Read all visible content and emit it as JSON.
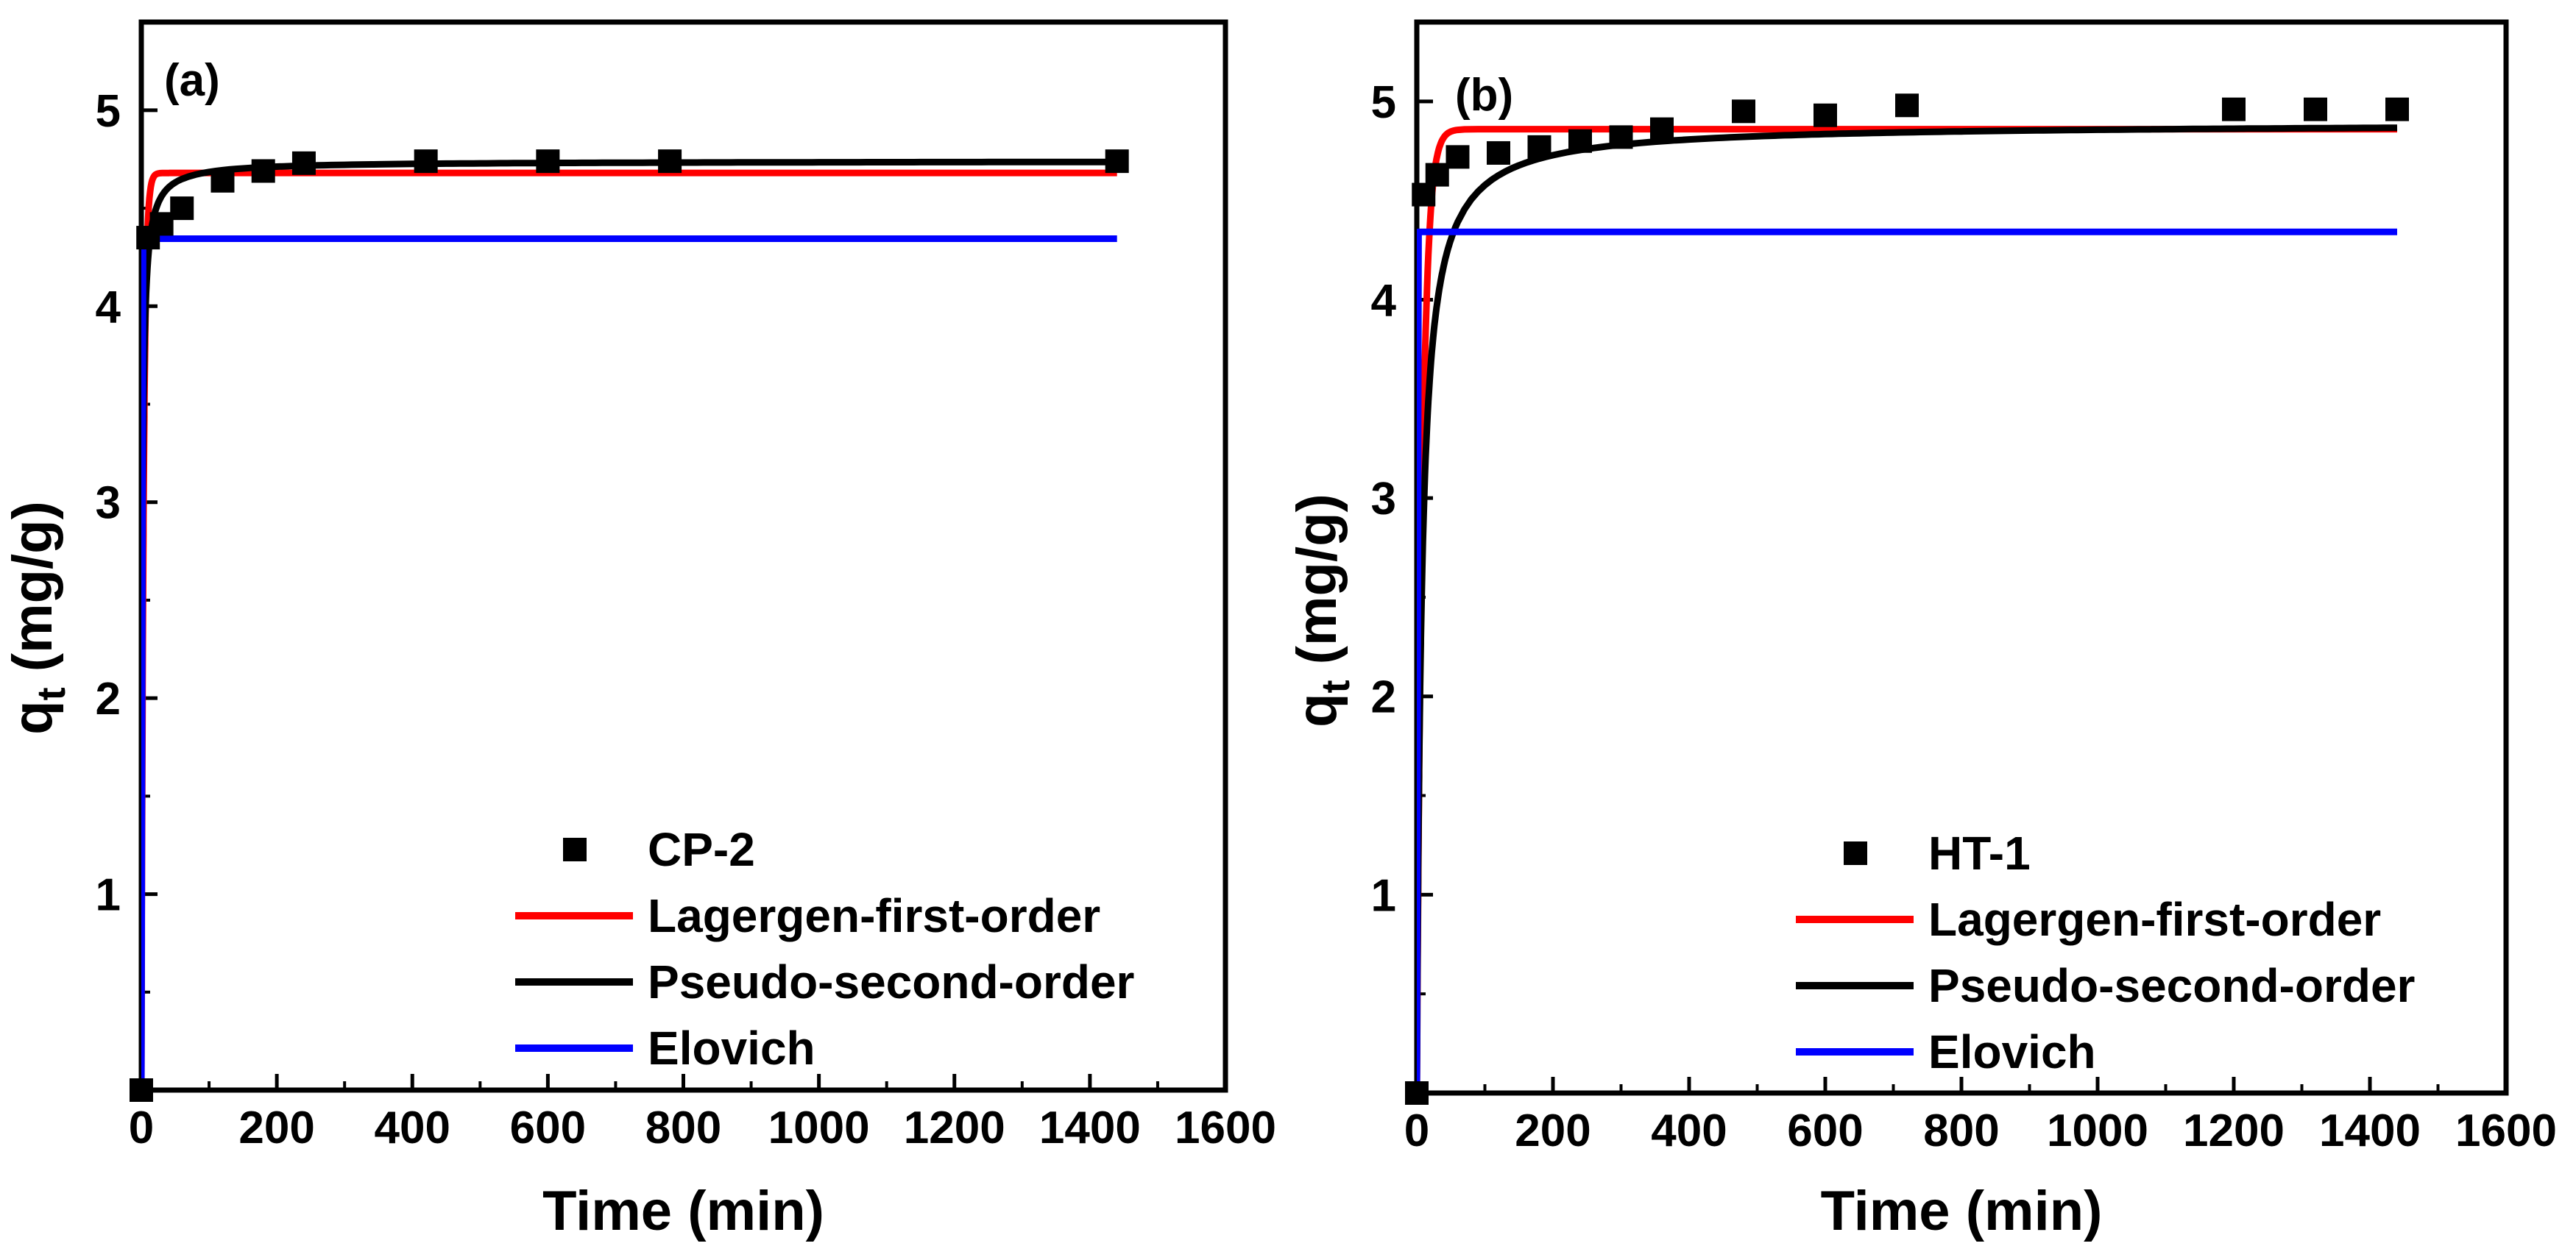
{
  "chart_data": [
    {
      "type": "scatter",
      "panel_label": "(a)",
      "xlabel": "Time (min)",
      "ylabel_main": "q",
      "ylabel_sub": "t",
      "ylabel_unit": " (mg/g)",
      "xlim": [
        0,
        1600
      ],
      "ylim": [
        0,
        5.45
      ],
      "xticks": [
        0,
        200,
        400,
        600,
        800,
        1000,
        1200,
        1400,
        1600
      ],
      "yticks": [
        1,
        2,
        3,
        4,
        5
      ],
      "legend_position": "bottom-right",
      "series": [
        {
          "name": "CP-2",
          "kind": "markers",
          "color": "#000000",
          "x": [
            0,
            10,
            30,
            60,
            120,
            180,
            240,
            420,
            600,
            780,
            1440
          ],
          "y": [
            0,
            4.35,
            4.42,
            4.5,
            4.64,
            4.69,
            4.73,
            4.74,
            4.74,
            4.74,
            4.74
          ]
        },
        {
          "name": "Lagergen-first-order",
          "kind": "line",
          "color": "#ff0000",
          "model": "pfo",
          "params": {
            "qe": 4.68,
            "k": 0.3
          },
          "xmax": 1440
        },
        {
          "name": "Pseudo-second-order",
          "kind": "line",
          "color": "#000000",
          "model": "pso",
          "params": {
            "qe": 4.74,
            "k": 0.18
          },
          "xmax": 1440
        },
        {
          "name": "Elovich",
          "kind": "line",
          "color": "#0000ff",
          "model": "elovich",
          "params": {
            "a": 4.27,
            "b": 0.078
          },
          "xmax": 1440
        }
      ]
    },
    {
      "type": "scatter",
      "panel_label": "(b)",
      "xlabel": "Time (min)",
      "ylabel_main": "q",
      "ylabel_sub": "t",
      "ylabel_unit": " (mg/g)",
      "xlim": [
        0,
        1600
      ],
      "ylim": [
        0,
        5.4
      ],
      "xticks": [
        0,
        200,
        400,
        600,
        800,
        1000,
        1200,
        1400,
        1600
      ],
      "yticks": [
        1,
        2,
        3,
        4,
        5
      ],
      "legend_position": "bottom-right",
      "series": [
        {
          "name": "HT-1",
          "kind": "markers",
          "color": "#000000",
          "x": [
            0,
            10,
            30,
            60,
            120,
            180,
            240,
            300,
            360,
            480,
            600,
            720,
            1200,
            1320,
            1440
          ],
          "y": [
            0,
            4.53,
            4.63,
            4.72,
            4.74,
            4.77,
            4.8,
            4.82,
            4.86,
            4.95,
            4.93,
            4.98,
            4.96,
            4.96,
            4.96
          ]
        },
        {
          "name": "Lagergen-first-order",
          "kind": "line",
          "color": "#ff0000",
          "model": "pfo",
          "params": {
            "qe": 4.86,
            "k": 0.12
          },
          "xmax": 1440
        },
        {
          "name": "Pseudo-second-order",
          "kind": "line",
          "color": "#000000",
          "model": "pso",
          "params": {
            "qe": 4.89,
            "k": 0.03
          },
          "xmax": 1440
        },
        {
          "name": "Elovich",
          "kind": "line",
          "color": "#0000ff",
          "model": "elovich",
          "params": {
            "a": 4.24,
            "b": 0.107
          },
          "xmax": 1440
        }
      ]
    }
  ]
}
